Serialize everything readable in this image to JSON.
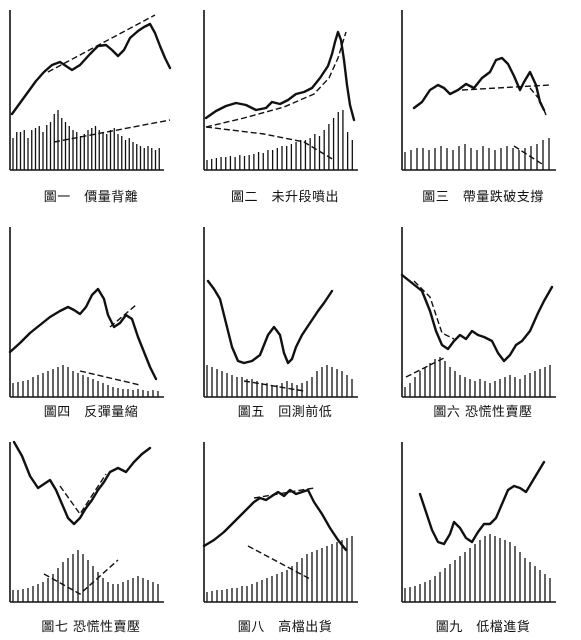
{
  "panels": [
    {
      "caption": "圖一　價量背離",
      "price": [
        [
          2,
          104
        ],
        [
          10,
          93
        ],
        [
          18,
          82
        ],
        [
          26,
          71
        ],
        [
          34,
          62
        ],
        [
          42,
          55
        ],
        [
          50,
          52
        ],
        [
          56,
          56
        ],
        [
          62,
          60
        ],
        [
          70,
          55
        ],
        [
          80,
          44
        ],
        [
          88,
          36
        ],
        [
          96,
          35
        ],
        [
          102,
          40
        ],
        [
          108,
          46
        ],
        [
          114,
          40
        ],
        [
          120,
          28
        ],
        [
          128,
          21
        ],
        [
          134,
          17
        ],
        [
          140,
          14
        ],
        [
          145,
          23
        ],
        [
          150,
          36
        ],
        [
          155,
          48
        ],
        [
          160,
          58
        ]
      ],
      "trend_price": [
        [
          38,
          62
        ],
        [
          145,
          5
        ]
      ],
      "volume": [
        32,
        38,
        38,
        40,
        32,
        40,
        42,
        44,
        38,
        45,
        48,
        56,
        60,
        52,
        48,
        44,
        40,
        38,
        34,
        36,
        40,
        42,
        44,
        40,
        38,
        36,
        40,
        42,
        36,
        34,
        30,
        32,
        28,
        26,
        24,
        22,
        24,
        22,
        20,
        22
      ],
      "trend_volume": [
        [
          44,
          28
        ],
        [
          160,
          50
        ]
      ],
      "axis_height": 160
    },
    {
      "caption": "圖二　未升段噴出",
      "price": [
        [
          2,
          108
        ],
        [
          12,
          101
        ],
        [
          22,
          96
        ],
        [
          32,
          93
        ],
        [
          42,
          95
        ],
        [
          52,
          100
        ],
        [
          62,
          98
        ],
        [
          68,
          92
        ],
        [
          76,
          94
        ],
        [
          84,
          90
        ],
        [
          92,
          84
        ],
        [
          100,
          82
        ],
        [
          108,
          78
        ],
        [
          116,
          68
        ],
        [
          124,
          56
        ],
        [
          128,
          44
        ],
        [
          131,
          32
        ],
        [
          134,
          22
        ],
        [
          137,
          30
        ],
        [
          140,
          50
        ],
        [
          143,
          75
        ],
        [
          146,
          95
        ],
        [
          150,
          110
        ]
      ],
      "trend_price": [
        [
          2,
          117
        ],
        [
          40,
          108
        ],
        [
          80,
          97
        ],
        [
          110,
          84
        ],
        [
          125,
          68
        ],
        [
          134,
          48
        ],
        [
          142,
          22
        ]
      ],
      "volume": [
        10,
        11,
        12,
        13,
        13,
        14,
        13,
        15,
        14,
        15,
        16,
        18,
        17,
        20,
        20,
        22,
        24,
        24,
        26,
        28,
        30,
        30,
        32,
        36,
        34,
        40,
        46,
        52,
        58,
        60,
        38,
        30
      ],
      "trend_volume": [
        [
          2,
          43
        ],
        [
          60,
          36
        ],
        [
          100,
          28
        ],
        [
          130,
          10
        ]
      ],
      "axis_height": 160
    },
    {
      "caption": "圖三　帶量跌破支撐",
      "price": [
        [
          12,
          98
        ],
        [
          20,
          92
        ],
        [
          28,
          80
        ],
        [
          36,
          75
        ],
        [
          42,
          78
        ],
        [
          48,
          84
        ],
        [
          56,
          80
        ],
        [
          64,
          74
        ],
        [
          72,
          78
        ],
        [
          80,
          68
        ],
        [
          88,
          62
        ],
        [
          94,
          50
        ],
        [
          100,
          48
        ],
        [
          106,
          54
        ],
        [
          112,
          66
        ],
        [
          118,
          80
        ],
        [
          122,
          72
        ],
        [
          128,
          62
        ],
        [
          134,
          75
        ],
        [
          138,
          92
        ],
        [
          142,
          100
        ]
      ],
      "trend_price": [
        [
          60,
          80
        ],
        [
          148,
          75
        ]
      ],
      "trend_price_2": [
        [
          128,
          78
        ],
        [
          138,
          90
        ],
        [
          144,
          105
        ]
      ],
      "volume": [
        18,
        20,
        22,
        22,
        20,
        22,
        24,
        22,
        20,
        24,
        26,
        22,
        20,
        24,
        22,
        20,
        22,
        24,
        22,
        20,
        22,
        24,
        26,
        30,
        32
      ],
      "trend_volume": [
        [
          112,
          24
        ],
        [
          140,
          6
        ]
      ],
      "axis_height": 160
    },
    {
      "caption": "圖四　反彈量縮",
      "price": [
        [
          0,
          125
        ],
        [
          10,
          116
        ],
        [
          20,
          106
        ],
        [
          30,
          98
        ],
        [
          40,
          90
        ],
        [
          50,
          84
        ],
        [
          58,
          80
        ],
        [
          64,
          83
        ],
        [
          70,
          87
        ],
        [
          76,
          80
        ],
        [
          82,
          68
        ],
        [
          88,
          62
        ],
        [
          94,
          72
        ],
        [
          98,
          88
        ],
        [
          104,
          100
        ],
        [
          110,
          96
        ],
        [
          116,
          88
        ],
        [
          122,
          92
        ],
        [
          128,
          110
        ],
        [
          134,
          125
        ],
        [
          140,
          140
        ],
        [
          146,
          152
        ]
      ],
      "trend_price": [
        [
          100,
          100
        ],
        [
          126,
          78
        ]
      ],
      "volume": [
        14,
        15,
        16,
        17,
        20,
        22,
        24,
        26,
        28,
        30,
        32,
        30,
        26,
        24,
        22,
        20,
        18,
        16,
        14,
        12,
        10,
        9,
        8,
        8,
        7,
        8,
        7,
        6,
        7,
        6
      ],
      "trend_volume": [
        [
          70,
          26
        ],
        [
          130,
          12
        ]
      ],
      "axis_height": 170
    },
    {
      "caption": "圖五　回測前低",
      "price": [
        [
          4,
          54
        ],
        [
          10,
          62
        ],
        [
          16,
          72
        ],
        [
          22,
          96
        ],
        [
          28,
          120
        ],
        [
          34,
          134
        ],
        [
          40,
          136
        ],
        [
          48,
          134
        ],
        [
          56,
          128
        ],
        [
          64,
          108
        ],
        [
          70,
          100
        ],
        [
          76,
          108
        ],
        [
          80,
          126
        ],
        [
          84,
          136
        ],
        [
          88,
          132
        ],
        [
          92,
          120
        ],
        [
          98,
          108
        ],
        [
          106,
          96
        ],
        [
          114,
          84
        ],
        [
          120,
          76
        ],
        [
          128,
          64
        ]
      ],
      "volume": [
        32,
        30,
        28,
        26,
        24,
        22,
        20,
        20,
        18,
        18,
        16,
        14,
        14,
        12,
        12,
        14,
        16,
        14,
        12,
        14,
        16,
        20,
        26,
        30,
        32,
        30,
        28,
        26,
        22,
        18
      ],
      "trend_volume": [
        [
          40,
          16
        ],
        [
          100,
          6
        ]
      ],
      "axis_height": 170
    },
    {
      "caption": "圖六 恐慌性賣壓",
      "price": [
        [
          0,
          48
        ],
        [
          10,
          56
        ],
        [
          20,
          64
        ],
        [
          28,
          84
        ],
        [
          34,
          104
        ],
        [
          40,
          118
        ],
        [
          46,
          122
        ],
        [
          52,
          114
        ],
        [
          58,
          108
        ],
        [
          64,
          112
        ],
        [
          70,
          104
        ],
        [
          76,
          108
        ],
        [
          82,
          110
        ],
        [
          90,
          114
        ],
        [
          96,
          126
        ],
        [
          102,
          134
        ],
        [
          108,
          128
        ],
        [
          114,
          118
        ],
        [
          120,
          114
        ],
        [
          128,
          104
        ],
        [
          136,
          86
        ],
        [
          142,
          74
        ],
        [
          150,
          60
        ]
      ],
      "trend_price": [
        [
          12,
          54
        ],
        [
          28,
          70
        ],
        [
          40,
          106
        ],
        [
          52,
          112
        ]
      ],
      "volume": [
        10,
        14,
        20,
        26,
        30,
        34,
        38,
        40,
        36,
        30,
        26,
        22,
        20,
        18,
        16,
        18,
        16,
        14,
        16,
        18,
        20,
        22,
        20,
        18,
        22,
        24,
        26,
        28,
        30,
        32
      ],
      "trend_volume": [
        [
          4,
          20
        ],
        [
          44,
          40
        ]
      ],
      "axis_height": 170
    },
    {
      "caption": "圖七 恐慌性賣壓",
      "price": [
        [
          4,
          0
        ],
        [
          12,
          14
        ],
        [
          20,
          34
        ],
        [
          28,
          46
        ],
        [
          34,
          42
        ],
        [
          40,
          38
        ],
        [
          46,
          48
        ],
        [
          52,
          62
        ],
        [
          58,
          76
        ],
        [
          64,
          82
        ],
        [
          70,
          76
        ],
        [
          76,
          66
        ],
        [
          82,
          58
        ],
        [
          88,
          48
        ],
        [
          94,
          40
        ],
        [
          100,
          30
        ],
        [
          108,
          26
        ],
        [
          116,
          30
        ],
        [
          124,
          20
        ],
        [
          132,
          12
        ],
        [
          140,
          6
        ]
      ],
      "trend_price": [
        [
          50,
          44
        ],
        [
          70,
          72
        ],
        [
          96,
          32
        ]
      ],
      "volume": [
        12,
        12,
        13,
        14,
        16,
        18,
        20,
        24,
        28,
        34,
        40,
        44,
        48,
        52,
        48,
        42,
        36,
        30,
        24,
        20,
        18,
        18,
        20,
        22,
        24,
        26,
        24,
        22,
        20,
        18
      ],
      "trend_volume": [
        [
          34,
          28
        ],
        [
          70,
          8
        ],
        [
          108,
          42
        ]
      ],
      "axis_height": 160
    },
    {
      "caption": "圖八　高檔出貨",
      "price": [
        [
          0,
          104
        ],
        [
          10,
          98
        ],
        [
          20,
          90
        ],
        [
          30,
          80
        ],
        [
          40,
          70
        ],
        [
          50,
          60
        ],
        [
          56,
          56
        ],
        [
          62,
          58
        ],
        [
          68,
          54
        ],
        [
          74,
          50
        ],
        [
          80,
          54
        ],
        [
          86,
          48
        ],
        [
          92,
          52
        ],
        [
          98,
          50
        ],
        [
          104,
          48
        ],
        [
          110,
          60
        ],
        [
          118,
          72
        ],
        [
          126,
          86
        ],
        [
          134,
          98
        ],
        [
          142,
          108
        ]
      ],
      "trend_price": [
        [
          50,
          56
        ],
        [
          110,
          46
        ]
      ],
      "volume": [
        10,
        11,
        12,
        12,
        13,
        14,
        14,
        16,
        16,
        18,
        20,
        22,
        24,
        26,
        28,
        30,
        32,
        36,
        40,
        44,
        48,
        50,
        52,
        54,
        56,
        58,
        60,
        62,
        64,
        66
      ],
      "trend_volume": [
        [
          44,
          56
        ],
        [
          108,
          22
        ]
      ],
      "axis_height": 160
    },
    {
      "caption": "圖九　低檔進貨",
      "price": [
        [
          18,
          52
        ],
        [
          24,
          70
        ],
        [
          30,
          88
        ],
        [
          36,
          100
        ],
        [
          42,
          102
        ],
        [
          48,
          92
        ],
        [
          52,
          80
        ],
        [
          58,
          86
        ],
        [
          64,
          96
        ],
        [
          70,
          100
        ],
        [
          76,
          90
        ],
        [
          82,
          82
        ],
        [
          88,
          82
        ],
        [
          94,
          76
        ],
        [
          100,
          62
        ],
        [
          106,
          48
        ],
        [
          112,
          44
        ],
        [
          118,
          46
        ],
        [
          124,
          50
        ],
        [
          130,
          40
        ],
        [
          136,
          30
        ],
        [
          142,
          20
        ]
      ],
      "volume": [
        14,
        15,
        16,
        18,
        20,
        22,
        26,
        30,
        34,
        38,
        42,
        46,
        50,
        54,
        58,
        62,
        66,
        68,
        66,
        64,
        62,
        60,
        56,
        50,
        44,
        40,
        36,
        32,
        28,
        24
      ],
      "axis_height": 160
    }
  ]
}
